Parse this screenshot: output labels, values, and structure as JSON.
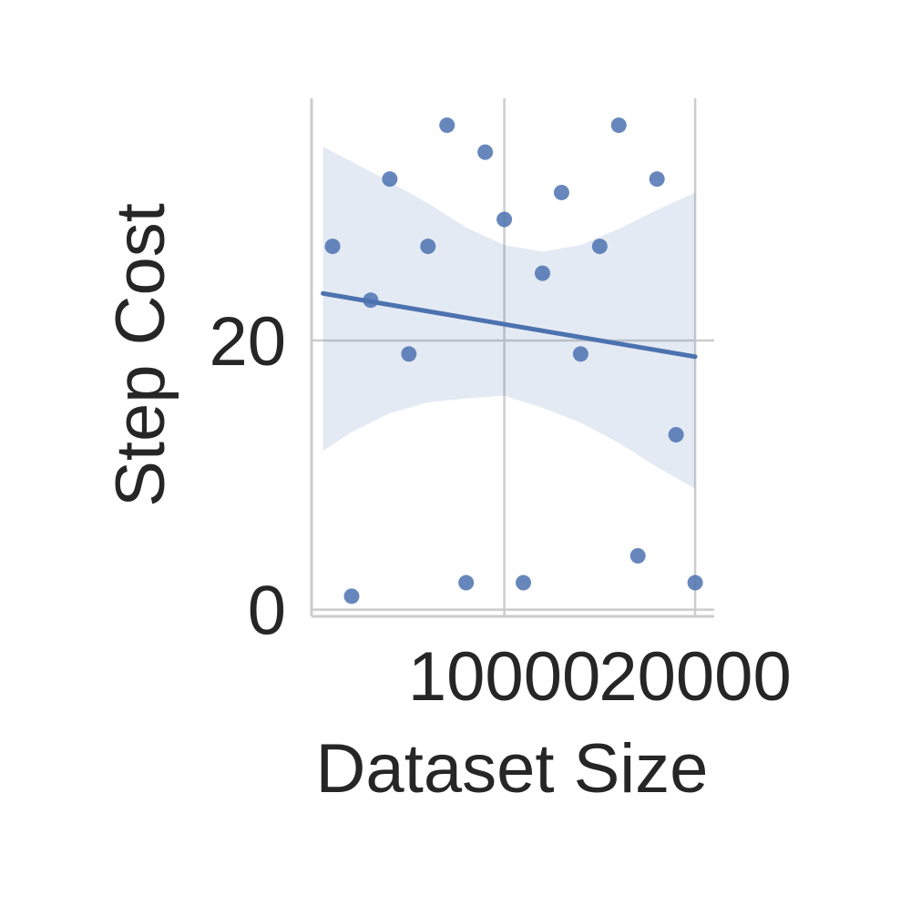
{
  "chart_data": {
    "type": "scatter",
    "title": "",
    "xlabel": "Dataset Size",
    "ylabel": "Step Cost",
    "xlim": [
      -100,
      21000
    ],
    "ylim": [
      -0.5,
      38
    ],
    "xticks": [
      {
        "value": 10000,
        "label": "10000"
      },
      {
        "value": 20000,
        "label": "20000"
      }
    ],
    "yticks": [
      {
        "value": 0,
        "label": "0"
      },
      {
        "value": 20,
        "label": "20"
      }
    ],
    "grid": true,
    "series": [
      {
        "kind": "points",
        "color": "#4c72b0",
        "points": [
          {
            "x": 1000,
            "y": 27
          },
          {
            "x": 2000,
            "y": 1
          },
          {
            "x": 3000,
            "y": 23
          },
          {
            "x": 4000,
            "y": 32
          },
          {
            "x": 5000,
            "y": 19
          },
          {
            "x": 6000,
            "y": 27
          },
          {
            "x": 7000,
            "y": 36
          },
          {
            "x": 8000,
            "y": 2
          },
          {
            "x": 9000,
            "y": 34
          },
          {
            "x": 10000,
            "y": 29
          },
          {
            "x": 11000,
            "y": 2
          },
          {
            "x": 12000,
            "y": 25
          },
          {
            "x": 13000,
            "y": 31
          },
          {
            "x": 14000,
            "y": 19
          },
          {
            "x": 15000,
            "y": 27
          },
          {
            "x": 16000,
            "y": 36
          },
          {
            "x": 17000,
            "y": 4
          },
          {
            "x": 18000,
            "y": 32
          },
          {
            "x": 19000,
            "y": 13
          },
          {
            "x": 20000,
            "y": 2
          }
        ]
      },
      {
        "kind": "regression",
        "color": "#4c72b0",
        "line": [
          {
            "x": 500,
            "y": 23.5
          },
          {
            "x": 20000,
            "y": 18.8
          }
        ]
      },
      {
        "kind": "confidence-band",
        "color": "#4c72b0",
        "upper": [
          {
            "x": 500,
            "y": 34.4
          },
          {
            "x": 2000,
            "y": 33.3
          },
          {
            "x": 4000,
            "y": 31.8
          },
          {
            "x": 6000,
            "y": 30.2
          },
          {
            "x": 8000,
            "y": 28.4
          },
          {
            "x": 10000,
            "y": 27.1
          },
          {
            "x": 12000,
            "y": 26.6
          },
          {
            "x": 14000,
            "y": 27.1
          },
          {
            "x": 16000,
            "y": 28.3
          },
          {
            "x": 18000,
            "y": 29.7
          },
          {
            "x": 20000,
            "y": 31.0
          }
        ],
        "lower": [
          {
            "x": 500,
            "y": 11.8
          },
          {
            "x": 2000,
            "y": 13.2
          },
          {
            "x": 4000,
            "y": 14.6
          },
          {
            "x": 6000,
            "y": 15.4
          },
          {
            "x": 8000,
            "y": 15.7
          },
          {
            "x": 10000,
            "y": 15.9
          },
          {
            "x": 12000,
            "y": 15.0
          },
          {
            "x": 14000,
            "y": 13.9
          },
          {
            "x": 16000,
            "y": 12.4
          },
          {
            "x": 18000,
            "y": 10.6
          },
          {
            "x": 20000,
            "y": 9.0
          }
        ]
      }
    ]
  }
}
